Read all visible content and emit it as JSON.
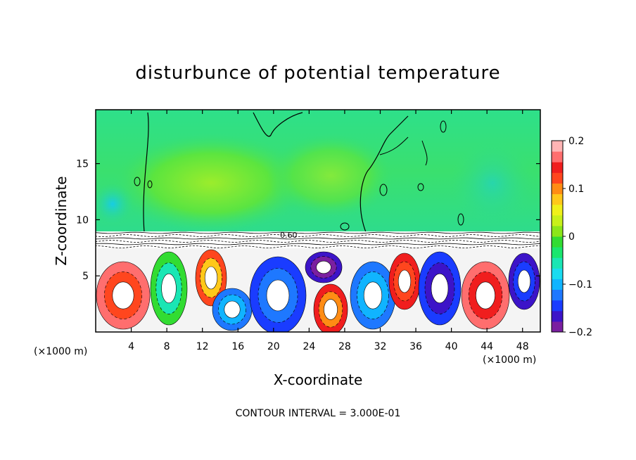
{
  "chart_data": {
    "type": "heatmap",
    "title": "disturbunce of potential temperature",
    "xlabel": "X-coordinate",
    "ylabel": "Z-coordinate",
    "x_unit_label": "(×1000 m)",
    "x_unit_label_right": "(×1000 m)",
    "footer": "CONTOUR INTERVAL = 3.000E-01",
    "xlim": [
      0,
      50
    ],
    "ylim": [
      0,
      19.8
    ],
    "x_ticks": [
      4,
      8,
      12,
      16,
      20,
      24,
      28,
      32,
      36,
      40,
      44,
      48
    ],
    "x_tick_labels": [
      "4",
      "8",
      "12",
      "16",
      "20",
      "24",
      "28",
      "32",
      "36",
      "40",
      "44",
      "48"
    ],
    "y_ticks": [
      5,
      10,
      15
    ],
    "y_tick_labels": [
      "5",
      "10",
      "15"
    ],
    "contour_label": "0.60",
    "colorbar": {
      "range": [
        -0.2,
        0.2
      ],
      "tick_values": [
        0.2,
        0.1,
        0,
        -0.1,
        -0.2
      ],
      "tick_labels": [
        "0.2",
        "0.1",
        "0",
        "−0.1",
        "−0.2"
      ],
      "colors": [
        "#7a1fa0",
        "#3c14c8",
        "#1a3cff",
        "#1e78ff",
        "#10b4ff",
        "#1adcf0",
        "#1ae6b4",
        "#1ae66e",
        "#32dc32",
        "#8ce61a",
        "#c8f01a",
        "#f0f01a",
        "#ffc81a",
        "#ff8c14",
        "#ff461e",
        "#f01e1e",
        "#ff6e6e",
        "#ffb4b4"
      ]
    },
    "background_value_label": "0"
  }
}
